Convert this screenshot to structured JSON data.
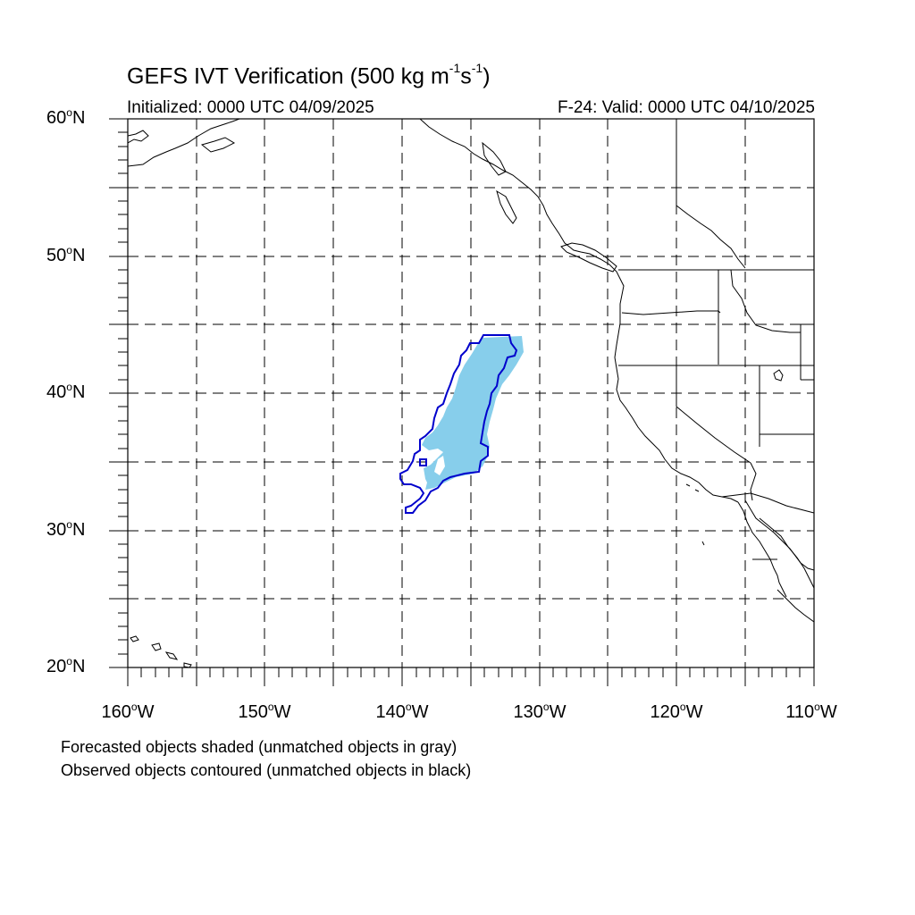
{
  "title": {
    "prefix": "GEFS IVT Verification (500 kg m",
    "sup1": "-1",
    "mid": "s",
    "sup2": "-1",
    "suffix": ")"
  },
  "subtitle_left": "Initialized: 0000 UTC 04/09/2025",
  "subtitle_right": "F-24: Valid: 0000 UTC 04/10/2025",
  "axes": {
    "lat_labels": [
      "60",
      "50",
      "40",
      "30",
      "20"
    ],
    "lat_suffix": "N",
    "lon_labels": [
      "160",
      "150",
      "140",
      "130",
      "120",
      "110"
    ],
    "lon_suffix": "W",
    "degree_symbol": "o"
  },
  "captions": [
    "Forecasted objects shaded (unmatched objects in gray)",
    "Observed objects contoured (unmatched objects in black)"
  ],
  "colors": {
    "forecast_fill": "#87ceeb",
    "observed_contour": "#0000cc",
    "coastline": "#000000",
    "grid": "#000000"
  },
  "map_extent": {
    "lon_min": -160,
    "lon_max": -110,
    "lat_min": 20,
    "lat_max": 60
  },
  "gridlines": "dashed every 5 degrees"
}
